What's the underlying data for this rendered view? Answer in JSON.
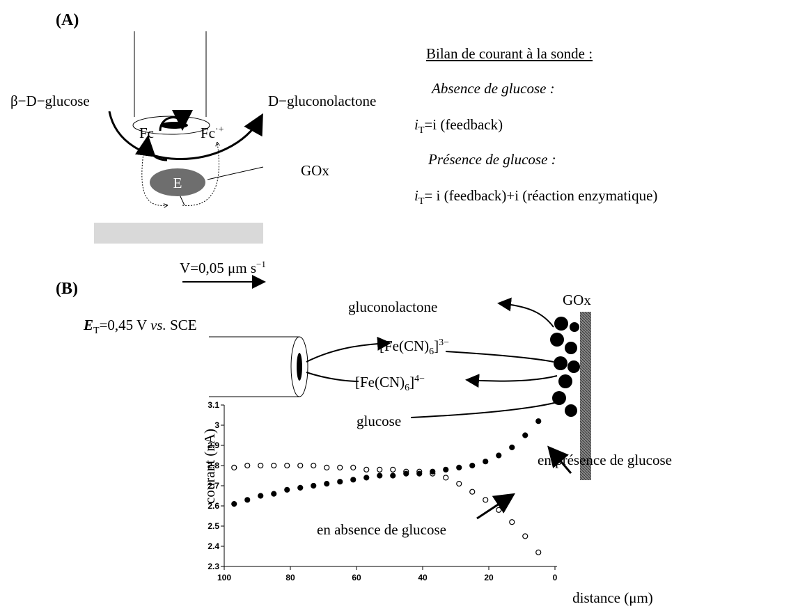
{
  "panel_a": {
    "label": "(A)",
    "substrate": "β−D−glucose",
    "product": "D−gluconolactone",
    "mediator_red": "Fc",
    "mediator_ox": {
      "text": "Fc",
      "sup": "·+"
    },
    "enzyme": "E",
    "enzyme_name": "GOx",
    "balance": {
      "title": "Bilan de courant à la sonde :",
      "absence": "Absence de glucose :",
      "absence_eq": {
        "symbol": "i",
        "sub": "T",
        "text": "=i (feedback)"
      },
      "presence": "Présence de glucose :",
      "presence_eq": {
        "symbol": "i",
        "sub": "T",
        "text": "= i (feedback)+i (réaction enzymatique)"
      }
    }
  },
  "panel_b": {
    "label": "(B)",
    "speed": {
      "text": "V=0,05 μm s",
      "sup": "−1"
    },
    "potential": {
      "symbol": "E",
      "sub": "T",
      "text": "=0,45 V ",
      "italic": "vs.",
      "tail": " SCE"
    },
    "product": "gluconolactone",
    "enzyme_name": "GOx",
    "ferri": {
      "text": "[Fe(CN)",
      "sub": "6",
      "tail": "]",
      "sup": "3−"
    },
    "ferro": {
      "text": "[Fe(CN)",
      "sub": "6",
      "tail": "]",
      "sup": "4−"
    },
    "substrate": "glucose"
  },
  "chart_data": {
    "type": "scatter",
    "xlabel": "distance (μm)",
    "ylabel": "courant (nA)",
    "x": [
      97,
      93,
      89,
      85,
      81,
      77,
      73,
      69,
      65,
      61,
      57,
      53,
      49,
      45,
      41,
      37,
      33,
      29,
      25,
      21,
      17,
      13,
      9,
      5
    ],
    "series": [
      {
        "marker": "open",
        "color": "#000000",
        "values": [
          2.79,
          2.8,
          2.8,
          2.8,
          2.8,
          2.8,
          2.8,
          2.79,
          2.79,
          2.79,
          2.78,
          2.78,
          2.78,
          2.77,
          2.77,
          2.76,
          2.74,
          2.71,
          2.67,
          2.63,
          2.58,
          2.52,
          2.45,
          2.37
        ]
      },
      {
        "marker": "filled",
        "color": "#000000",
        "values": [
          2.61,
          2.63,
          2.65,
          2.66,
          2.68,
          2.69,
          2.7,
          2.71,
          2.72,
          2.73,
          2.74,
          2.75,
          2.75,
          2.76,
          2.76,
          2.77,
          2.78,
          2.79,
          2.8,
          2.82,
          2.85,
          2.89,
          2.95,
          3.02
        ]
      }
    ],
    "annotations": [
      "en présence de glucose",
      "en absence de glucose"
    ],
    "xlim": [
      100,
      0
    ],
    "ylim": [
      2.3,
      3.1
    ],
    "xticks": [
      100,
      80,
      60,
      40,
      20,
      0
    ],
    "yticks": [
      2.3,
      2.4,
      2.5,
      2.6,
      2.7,
      2.8,
      2.9,
      3,
      3.1
    ]
  }
}
